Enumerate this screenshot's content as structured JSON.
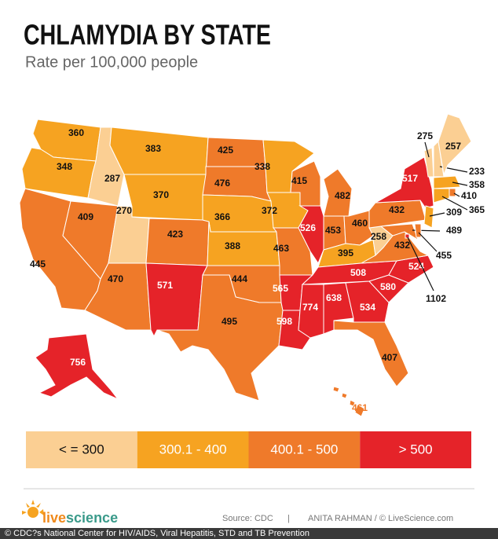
{
  "chart_data": {
    "type": "choropleth",
    "title": "CHLAMYDIA BY STATE",
    "subtitle": "Rate per 100,000 people",
    "values": [
      360,
      348,
      445,
      409,
      287,
      383,
      370,
      270,
      470,
      423,
      571,
      425,
      476,
      366,
      388,
      444,
      495,
      338,
      372,
      463,
      565,
      598,
      415,
      526,
      482,
      453,
      460,
      395,
      508,
      774,
      638,
      534,
      407,
      580,
      524,
      432,
      258,
      432,
      517,
      489,
      455,
      309,
      1102,
      275,
      233,
      257,
      358,
      410,
      365,
      756,
      461
    ],
    "legend": [
      {
        "label": "< = 300",
        "max": 300,
        "color": "#fbcf93"
      },
      {
        "label": "300.1 - 400",
        "min": 300.1,
        "max": 400,
        "color": "#f6a321"
      },
      {
        "label": "400.1 - 500",
        "min": 400.1,
        "max": 500,
        "color": "#ef7a2a"
      },
      {
        "label": "> 500",
        "min": 500,
        "color": "#e52329"
      }
    ]
  },
  "footer": {
    "logo_live": "live",
    "logo_science": "science",
    "source": "Source: CDC",
    "separator": "|",
    "credit": "ANITA RAHMAN / © LiveScience.com",
    "caption": "© CDC?s National Center for HIV/AIDS, Viral Hepatitis, STD and TB Prevention"
  }
}
